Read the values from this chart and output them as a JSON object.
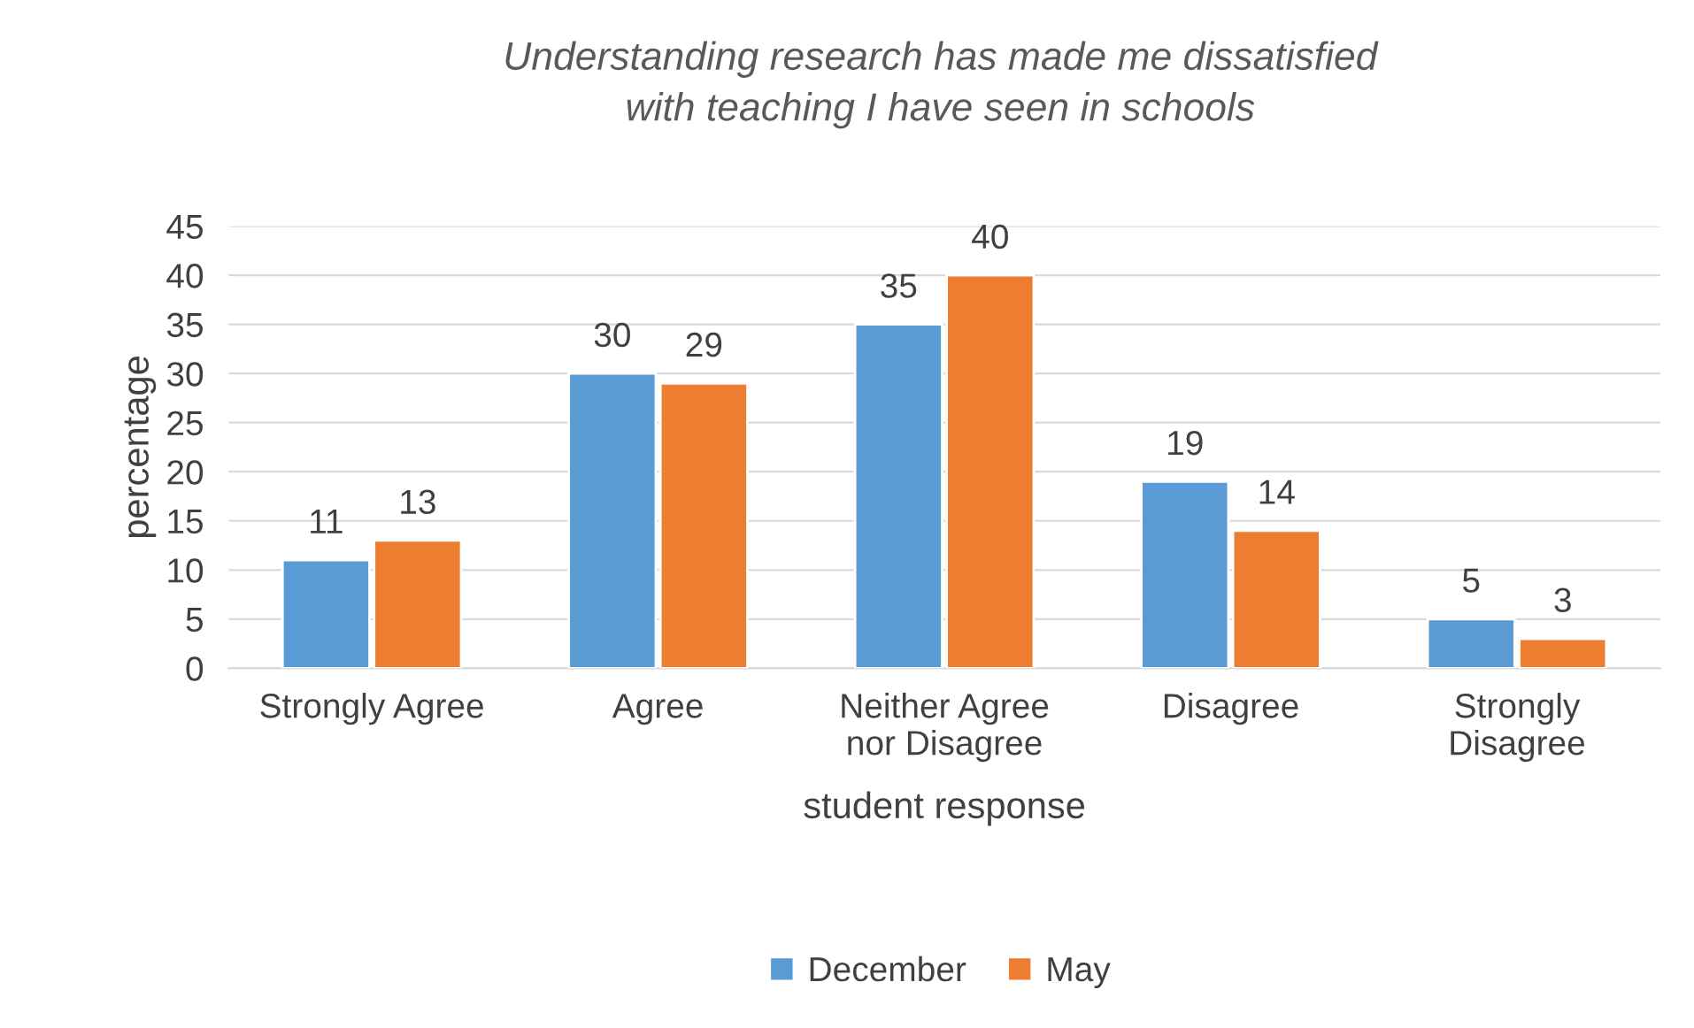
{
  "chart_data": {
    "type": "bar",
    "title": "Understanding research has made me dissatisfied with teaching I have seen in schools",
    "xlabel": "student response",
    "ylabel": "percentage",
    "categories": [
      "Strongly Agree",
      "Agree",
      "Neither Agree nor Disagree",
      "Disagree",
      "Strongly Disagree"
    ],
    "series": [
      {
        "name": "December",
        "color": "#5b9bd5",
        "values": [
          11,
          30,
          35,
          19,
          5
        ]
      },
      {
        "name": "May",
        "color": "#ed7d31",
        "values": [
          13,
          29,
          40,
          14,
          3
        ]
      }
    ],
    "ylim": [
      0,
      45
    ],
    "yticks": [
      0,
      5,
      10,
      15,
      20,
      25,
      30,
      35,
      40,
      45
    ],
    "grid": "y",
    "legend": "bottom",
    "data_labels": true
  }
}
